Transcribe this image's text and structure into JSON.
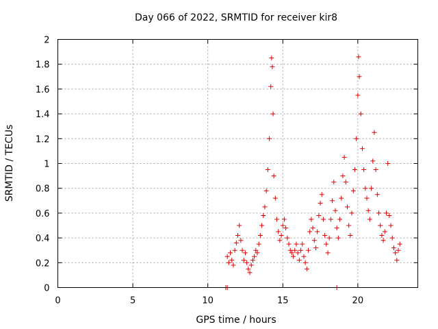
{
  "chart_data": {
    "type": "scatter",
    "title": "Day 066 of 2022, SRMTID for receiver kir8",
    "xlabel": "GPS time / hours",
    "ylabel": "SRMTID / TECUs",
    "xlim": [
      0,
      24
    ],
    "ylim": [
      0,
      2
    ],
    "xticks": [
      0,
      5,
      10,
      15,
      20
    ],
    "yticks": [
      0,
      0.2,
      0.4,
      0.6,
      0.8,
      1,
      1.2,
      1.4,
      1.6,
      1.8,
      2
    ],
    "grid": true,
    "marker": "plus",
    "color": "#e00000",
    "series": [
      {
        "name": "SRMTID",
        "points": [
          [
            11.2,
            0.0
          ],
          [
            11.3,
            0.0
          ],
          [
            18.6,
            0.0
          ],
          [
            11.3,
            0.25
          ],
          [
            11.4,
            0.2
          ],
          [
            11.5,
            0.28
          ],
          [
            11.6,
            0.22
          ],
          [
            11.7,
            0.18
          ],
          [
            11.8,
            0.3
          ],
          [
            11.9,
            0.36
          ],
          [
            12.0,
            0.42
          ],
          [
            12.1,
            0.5
          ],
          [
            12.2,
            0.38
          ],
          [
            12.3,
            0.3
          ],
          [
            12.4,
            0.22
          ],
          [
            12.5,
            0.28
          ],
          [
            12.6,
            0.2
          ],
          [
            12.7,
            0.15
          ],
          [
            12.8,
            0.12
          ],
          [
            12.9,
            0.18
          ],
          [
            13.0,
            0.22
          ],
          [
            13.1,
            0.25
          ],
          [
            13.2,
            0.3
          ],
          [
            13.3,
            0.28
          ],
          [
            13.4,
            0.35
          ],
          [
            13.5,
            0.42
          ],
          [
            13.6,
            0.5
          ],
          [
            13.7,
            0.58
          ],
          [
            13.8,
            0.65
          ],
          [
            13.9,
            0.78
          ],
          [
            14.0,
            0.95
          ],
          [
            14.1,
            1.2
          ],
          [
            14.2,
            1.62
          ],
          [
            14.25,
            1.85
          ],
          [
            14.3,
            1.78
          ],
          [
            14.35,
            1.4
          ],
          [
            14.4,
            0.9
          ],
          [
            14.5,
            0.72
          ],
          [
            14.6,
            0.55
          ],
          [
            14.7,
            0.45
          ],
          [
            14.8,
            0.38
          ],
          [
            14.9,
            0.42
          ],
          [
            15.0,
            0.5
          ],
          [
            15.1,
            0.55
          ],
          [
            15.2,
            0.48
          ],
          [
            15.3,
            0.4
          ],
          [
            15.4,
            0.35
          ],
          [
            15.5,
            0.3
          ],
          [
            15.6,
            0.28
          ],
          [
            15.7,
            0.25
          ],
          [
            15.8,
            0.3
          ],
          [
            15.9,
            0.35
          ],
          [
            16.0,
            0.28
          ],
          [
            16.1,
            0.22
          ],
          [
            16.2,
            0.3
          ],
          [
            16.3,
            0.35
          ],
          [
            16.4,
            0.25
          ],
          [
            16.5,
            0.2
          ],
          [
            16.6,
            0.15
          ],
          [
            16.7,
            0.3
          ],
          [
            16.8,
            0.45
          ],
          [
            16.9,
            0.55
          ],
          [
            17.0,
            0.48
          ],
          [
            17.1,
            0.38
          ],
          [
            17.2,
            0.32
          ],
          [
            17.3,
            0.45
          ],
          [
            17.4,
            0.58
          ],
          [
            17.5,
            0.68
          ],
          [
            17.6,
            0.75
          ],
          [
            17.7,
            0.55
          ],
          [
            17.8,
            0.42
          ],
          [
            17.9,
            0.35
          ],
          [
            18.0,
            0.28
          ],
          [
            18.1,
            0.4
          ],
          [
            18.2,
            0.55
          ],
          [
            18.3,
            0.7
          ],
          [
            18.4,
            0.85
          ],
          [
            18.5,
            0.62
          ],
          [
            18.6,
            0.48
          ],
          [
            18.7,
            0.4
          ],
          [
            18.8,
            0.55
          ],
          [
            18.9,
            0.72
          ],
          [
            19.0,
            0.9
          ],
          [
            19.1,
            1.05
          ],
          [
            19.2,
            0.85
          ],
          [
            19.3,
            0.65
          ],
          [
            19.4,
            0.5
          ],
          [
            19.5,
            0.42
          ],
          [
            19.6,
            0.6
          ],
          [
            19.7,
            0.78
          ],
          [
            19.8,
            0.95
          ],
          [
            19.9,
            1.2
          ],
          [
            20.0,
            1.55
          ],
          [
            20.05,
            1.86
          ],
          [
            20.1,
            1.7
          ],
          [
            20.2,
            1.4
          ],
          [
            20.3,
            1.12
          ],
          [
            20.4,
            0.95
          ],
          [
            20.5,
            0.8
          ],
          [
            20.6,
            0.72
          ],
          [
            20.7,
            0.62
          ],
          [
            20.8,
            0.55
          ],
          [
            20.9,
            0.8
          ],
          [
            21.0,
            1.02
          ],
          [
            21.1,
            1.25
          ],
          [
            21.2,
            0.95
          ],
          [
            21.3,
            0.75
          ],
          [
            21.4,
            0.6
          ],
          [
            21.5,
            0.5
          ],
          [
            21.6,
            0.42
          ],
          [
            21.7,
            0.38
          ],
          [
            21.8,
            0.45
          ],
          [
            21.9,
            0.6
          ],
          [
            22.0,
            1.0
          ],
          [
            22.1,
            0.58
          ],
          [
            22.2,
            0.5
          ],
          [
            22.3,
            0.4
          ],
          [
            22.4,
            0.32
          ],
          [
            22.5,
            0.28
          ],
          [
            22.6,
            0.22
          ],
          [
            22.7,
            0.3
          ],
          [
            22.8,
            0.35
          ]
        ]
      }
    ]
  }
}
